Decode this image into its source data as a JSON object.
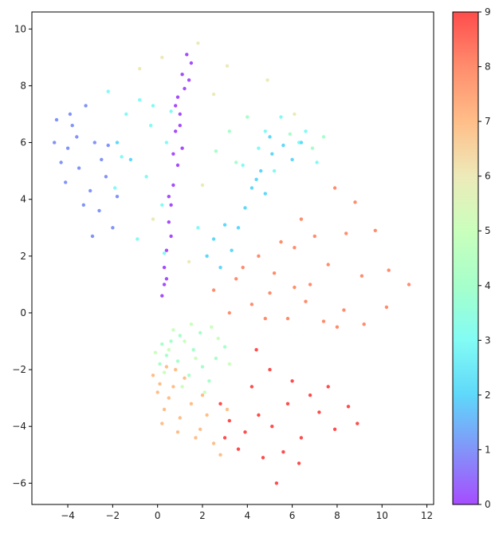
{
  "chart_data": {
    "type": "scatter",
    "title": "",
    "xlabel": "",
    "ylabel": "",
    "xlim": [
      -5.6,
      12.3
    ],
    "ylim": [
      -6.75,
      10.6
    ],
    "x_ticks": [
      -4,
      -2,
      0,
      2,
      4,
      6,
      8,
      10,
      12
    ],
    "y_ticks": [
      -6,
      -4,
      -2,
      0,
      2,
      4,
      6,
      8,
      10
    ],
    "x_tick_labels": [
      "−4",
      "−2",
      "0",
      "2",
      "4",
      "6",
      "8",
      "10",
      "12"
    ],
    "y_tick_labels": [
      "−6",
      "−4",
      "−2",
      "0",
      "2",
      "4",
      "6",
      "8",
      "10"
    ],
    "grid": false,
    "colormap": "rainbow",
    "point_alpha": 0.7,
    "colorbar": {
      "range": [
        0,
        9
      ],
      "ticks": [
        0,
        1,
        2,
        3,
        4,
        5,
        6,
        7,
        8,
        9
      ],
      "tick_labels": [
        "0",
        "1",
        "2",
        "3",
        "4",
        "5",
        "6",
        "7",
        "8",
        "9"
      ],
      "placement": "right"
    },
    "series": [
      {
        "label": 0,
        "color": "#8000ff",
        "points": [
          [
            1.3,
            9.1
          ],
          [
            1.1,
            8.4
          ],
          [
            0.9,
            7.6
          ],
          [
            1.2,
            7.9
          ],
          [
            1.0,
            7.0
          ],
          [
            0.8,
            6.4
          ],
          [
            1.1,
            5.8
          ],
          [
            0.9,
            5.2
          ],
          [
            0.7,
            4.5
          ],
          [
            0.6,
            3.8
          ],
          [
            0.5,
            3.2
          ],
          [
            0.6,
            2.7
          ],
          [
            0.4,
            2.2
          ],
          [
            0.3,
            1.6
          ],
          [
            0.4,
            1.2
          ],
          [
            1.5,
            8.8
          ],
          [
            0.8,
            7.3
          ],
          [
            1.4,
            8.2
          ],
          [
            0.7,
            5.6
          ],
          [
            1.0,
            6.6
          ],
          [
            0.5,
            4.1
          ],
          [
            0.3,
            1.0
          ],
          [
            0.2,
            0.6
          ]
        ]
      },
      {
        "label": 1,
        "color": "#4d66f6",
        "points": [
          [
            -4.5,
            6.8
          ],
          [
            -4.0,
            5.8
          ],
          [
            -3.5,
            5.1
          ],
          [
            -3.8,
            6.6
          ],
          [
            -3.2,
            7.3
          ],
          [
            -2.8,
            6.0
          ],
          [
            -2.3,
            4.8
          ],
          [
            -4.3,
            5.3
          ],
          [
            -3.0,
            4.3
          ],
          [
            -2.6,
            3.6
          ],
          [
            -2.0,
            3.0
          ],
          [
            -3.6,
            6.2
          ],
          [
            -4.1,
            4.6
          ],
          [
            -2.5,
            5.4
          ],
          [
            -3.3,
            3.8
          ],
          [
            -1.8,
            4.1
          ],
          [
            -4.6,
            6.0
          ],
          [
            -3.9,
            7.0
          ],
          [
            -2.9,
            2.7
          ],
          [
            -2.2,
            5.9
          ]
        ]
      },
      {
        "label": 2,
        "color": "#1ac7f8",
        "points": [
          [
            2.5,
            2.6
          ],
          [
            3.0,
            3.1
          ],
          [
            2.2,
            2.0
          ],
          [
            3.3,
            2.2
          ],
          [
            4.6,
            5.0
          ],
          [
            5.1,
            5.6
          ],
          [
            4.2,
            4.4
          ],
          [
            5.6,
            5.9
          ],
          [
            2.8,
            1.6
          ],
          [
            4.4,
            4.7
          ],
          [
            5.0,
            6.2
          ],
          [
            6.0,
            5.4
          ],
          [
            3.6,
            3.0
          ],
          [
            6.4,
            6.0
          ],
          [
            -1.8,
            6.0
          ],
          [
            -1.2,
            5.4
          ],
          [
            4.8,
            4.2
          ],
          [
            3.9,
            3.7
          ]
        ]
      },
      {
        "label": 3,
        "color": "#4dfaf0",
        "points": [
          [
            -1.4,
            7.0
          ],
          [
            -0.8,
            7.5
          ],
          [
            -0.2,
            7.3
          ],
          [
            0.4,
            6.0
          ],
          [
            -1.6,
            5.5
          ],
          [
            -0.5,
            4.8
          ],
          [
            0.2,
            3.8
          ],
          [
            -1.9,
            4.4
          ],
          [
            -0.3,
            6.6
          ],
          [
            0.6,
            7.1
          ],
          [
            4.8,
            6.4
          ],
          [
            5.5,
            6.9
          ],
          [
            6.3,
            6.0
          ],
          [
            3.8,
            5.2
          ],
          [
            4.5,
            5.8
          ],
          [
            5.2,
            5.0
          ],
          [
            6.6,
            6.4
          ],
          [
            7.1,
            5.3
          ],
          [
            -0.9,
            2.6
          ],
          [
            0.3,
            2.1
          ],
          [
            -2.2,
            7.8
          ],
          [
            1.8,
            3.0
          ]
        ]
      },
      {
        "label": 4,
        "color": "#80ffb4",
        "points": [
          [
            3.2,
            6.4
          ],
          [
            4.0,
            6.9
          ],
          [
            2.6,
            5.7
          ],
          [
            5.9,
            6.3
          ],
          [
            6.9,
            5.8
          ],
          [
            3.5,
            5.3
          ],
          [
            0.6,
            -1.0
          ],
          [
            0.4,
            -1.5
          ],
          [
            1.6,
            -1.3
          ],
          [
            2.0,
            -1.9
          ],
          [
            1.0,
            -0.8
          ],
          [
            0.2,
            -1.1
          ],
          [
            1.4,
            -2.2
          ],
          [
            2.6,
            -1.6
          ],
          [
            0.9,
            -1.7
          ],
          [
            3.0,
            -1.2
          ],
          [
            1.9,
            -0.7
          ],
          [
            2.3,
            -2.4
          ],
          [
            0.1,
            -1.8
          ],
          [
            7.4,
            6.2
          ]
        ]
      },
      {
        "label": 5,
        "color": "#b3ffa0",
        "points": [
          [
            -0.1,
            -1.4
          ],
          [
            0.3,
            -2.1
          ],
          [
            0.7,
            -0.6
          ],
          [
            1.2,
            -1.0
          ],
          [
            2.7,
            -0.9
          ],
          [
            1.7,
            -1.6
          ],
          [
            2.1,
            -2.8
          ],
          [
            3.2,
            -1.8
          ],
          [
            0.5,
            -1.3
          ],
          [
            2.4,
            -0.5
          ],
          [
            1.1,
            -2.6
          ],
          [
            1.5,
            -0.4
          ]
        ]
      },
      {
        "label": 6,
        "color": "#e6e19b",
        "points": [
          [
            0.2,
            9.0
          ],
          [
            1.8,
            9.5
          ],
          [
            2.5,
            7.7
          ],
          [
            -0.8,
            8.6
          ],
          [
            4.9,
            8.2
          ],
          [
            6.1,
            7.0
          ],
          [
            2.0,
            4.5
          ],
          [
            1.4,
            1.8
          ],
          [
            3.1,
            8.7
          ],
          [
            -0.2,
            3.3
          ]
        ]
      },
      {
        "label": 7,
        "color": "#ffa256",
        "points": [
          [
            0.1,
            -2.5
          ],
          [
            0.5,
            -3.0
          ],
          [
            0.0,
            -2.8
          ],
          [
            0.8,
            -2.0
          ],
          [
            0.3,
            -3.4
          ],
          [
            1.0,
            -3.7
          ],
          [
            0.7,
            -2.6
          ],
          [
            1.5,
            -3.2
          ],
          [
            1.9,
            -4.1
          ],
          [
            2.5,
            -4.6
          ],
          [
            0.2,
            -3.9
          ],
          [
            1.2,
            -2.3
          ],
          [
            2.2,
            -3.6
          ],
          [
            2.8,
            -5.0
          ],
          [
            1.7,
            -4.4
          ],
          [
            -0.2,
            -2.2
          ],
          [
            0.9,
            -4.2
          ],
          [
            3.1,
            -3.4
          ],
          [
            2.0,
            -2.9
          ],
          [
            0.4,
            -1.9
          ]
        ]
      },
      {
        "label": 8,
        "color": "#ff5c2e",
        "points": [
          [
            3.8,
            1.6
          ],
          [
            4.5,
            2.0
          ],
          [
            5.2,
            1.4
          ],
          [
            6.1,
            2.3
          ],
          [
            6.8,
            1.0
          ],
          [
            7.6,
            1.7
          ],
          [
            8.4,
            2.8
          ],
          [
            9.1,
            1.3
          ],
          [
            10.3,
            1.5
          ],
          [
            11.2,
            1.0
          ],
          [
            4.2,
            0.3
          ],
          [
            5.0,
            0.7
          ],
          [
            5.8,
            -0.2
          ],
          [
            6.6,
            0.4
          ],
          [
            7.4,
            -0.3
          ],
          [
            8.3,
            0.1
          ],
          [
            9.2,
            -0.4
          ],
          [
            10.2,
            0.2
          ],
          [
            3.2,
            0.0
          ],
          [
            4.8,
            -0.2
          ],
          [
            6.1,
            0.9
          ],
          [
            7.0,
            2.7
          ],
          [
            8.8,
            3.9
          ],
          [
            9.7,
            2.9
          ],
          [
            5.5,
            2.5
          ],
          [
            3.5,
            1.2
          ],
          [
            2.5,
            0.8
          ],
          [
            8.0,
            -0.5
          ],
          [
            6.4,
            3.3
          ],
          [
            7.9,
            4.4
          ]
        ]
      },
      {
        "label": 9,
        "color": "#ff0000",
        "points": [
          [
            3.2,
            -3.8
          ],
          [
            3.9,
            -4.2
          ],
          [
            4.5,
            -3.6
          ],
          [
            5.1,
            -4.0
          ],
          [
            5.8,
            -3.2
          ],
          [
            6.4,
            -4.4
          ],
          [
            7.2,
            -3.5
          ],
          [
            7.9,
            -4.1
          ],
          [
            8.5,
            -3.3
          ],
          [
            4.2,
            -2.6
          ],
          [
            5.0,
            -2.0
          ],
          [
            6.0,
            -2.4
          ],
          [
            6.8,
            -2.9
          ],
          [
            3.6,
            -4.8
          ],
          [
            4.7,
            -5.1
          ],
          [
            5.6,
            -4.9
          ],
          [
            6.3,
            -5.3
          ],
          [
            5.3,
            -6.0
          ],
          [
            2.8,
            -3.2
          ],
          [
            7.6,
            -2.6
          ],
          [
            4.4,
            -1.3
          ],
          [
            3.0,
            -4.4
          ],
          [
            8.9,
            -3.9
          ]
        ]
      }
    ]
  }
}
